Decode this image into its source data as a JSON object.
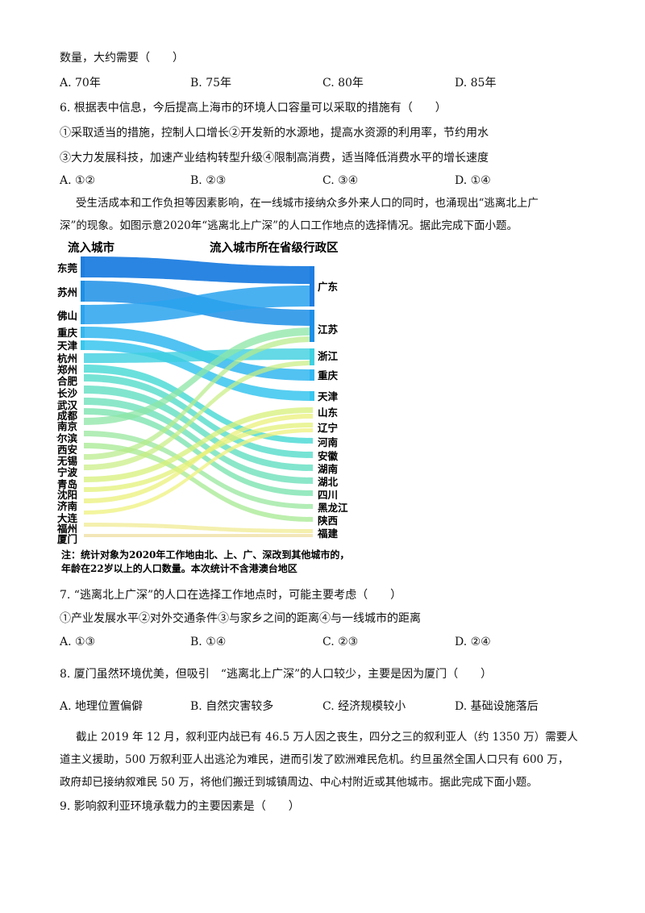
{
  "top_text": "数量，大约需要（　　）",
  "q5_options": [
    "A. 70年",
    "B. 75年",
    "C. 80年",
    "D. 85年"
  ],
  "q6": {
    "stem": "6. 根据表中信息，今后提高上海市的环境人口容量可以采取的措施有（　　）",
    "items_line1": "①采取适当的措施，控制人口增长②开发新的水源地，提高水资源的利用率，节约用水",
    "items_line2": "③大力发展科技，加速产业结构转型升级④限制高消费，适当降低消费水平的增长速度",
    "options": [
      "A. ①②",
      "B. ②③",
      "C. ③④",
      "D. ①④"
    ]
  },
  "passage1": {
    "line1": "受生活成本和工作负担等因素影响，在一线城市接纳众多外来人口的同时，也涌现出“逃离北上广",
    "line2": "深”的现象。如图示意2020年“逃离北上广深”的人口工作地点的选择情况。据此完成下面小题。"
  },
  "figure": {
    "left_header": "流入城市",
    "right_header": "流入城市所在省级行政区",
    "left_cities": [
      "东莞",
      "苏州",
      "佛山",
      "重庆",
      "天津",
      "杭州",
      "郑州",
      "合肥",
      "长沙",
      "武汉",
      "成都",
      "南京",
      "哈尔滨",
      "西安",
      "无锡",
      "宁波",
      "青岛",
      "沈阳",
      "济南",
      "大连",
      "福州",
      "厦门"
    ],
    "right_provinces": [
      "广东",
      "江苏",
      "浙江",
      "重庆",
      "天津",
      "山东",
      "辽宁",
      "河南",
      "安徽",
      "湖南",
      "湖北",
      "四川",
      "黑龙江",
      "陕西",
      "福建"
    ],
    "colors": {
      "deep_blue": "#1f7ee0",
      "sky": "#33b7f0",
      "cyan": "#3fd5d8",
      "teal": "#6ee0bf",
      "green": "#a9e88f",
      "yellow": "#e8f07a",
      "cream": "#f2e3b0"
    },
    "note_line1": "注：统计对象为2020年工作地由北、上、广、深改到其他城市的，",
    "note_line2": "年龄在22岁以上的人口数量。本次统计不含港澳台地区"
  },
  "q7": {
    "stem": "7. “逃离北上广深”的人口在选择工作地点时，可能主要考虑（　　）",
    "items": "①产业发展水平②对外交通条件③与家乡之间的距离④与一线城市的距离",
    "options": [
      "A. ①③",
      "B. ①④",
      "C. ②③",
      "D. ②④"
    ]
  },
  "q8": {
    "stem": "8. 厦门虽然环境优美，但吸引　“逃离北上广深”的人口较少，主要是因为厦门（　　）",
    "options": [
      "A. 地理位置偏僻",
      "B. 自然灾害较多",
      "C. 经济规模较小",
      "D. 基础设施落后"
    ]
  },
  "passage2": {
    "line1": "截止 2019 年 12 月，叙利亚内战已有 46.5 万人因之丧生，四分之三的叙利亚人（约 1350 万）需要人",
    "line2": "道主义援助，500 万叙利亚人出逃沦为难民，进而引发了欧洲难民危机。约旦虽然全国人口只有 600 万，",
    "line3": "政府却已接纳叙难民 50 万，将他们搬迁到城镇周边、中心村附近或其他城市。据此完成下面小题。"
  },
  "q9": {
    "stem": "9. 影响叙利亚环境承载力的主要因素是（　　）"
  }
}
